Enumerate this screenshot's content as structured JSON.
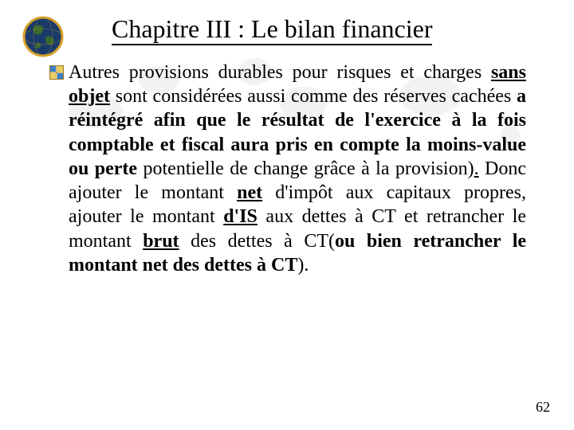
{
  "title": "Chapitre III : Le bilan financier",
  "page_number": "62",
  "body": {
    "spans": [
      {
        "text": "Autres provisions durables pour risques et charges ",
        "style": ""
      },
      {
        "text": "sans objet",
        "style": "bu"
      },
      {
        "text": " sont considérées aussi comme des réserves cachées ",
        "style": ""
      },
      {
        "text": "a réintégré afin que le résultat de l'exercice à la fois comptable et fiscal aura pris en compte la moins-value ou perte",
        "style": "b"
      },
      {
        "text": " potentielle de change grâce à la provision)",
        "style": ""
      },
      {
        "text": ".",
        "style": "u"
      },
      {
        "text": " Donc ajouter le montant ",
        "style": ""
      },
      {
        "text": "net",
        "style": "bu"
      },
      {
        "text": " d'impôt aux capitaux propres, ajouter le montant ",
        "style": ""
      },
      {
        "text": "d'IS",
        "style": "bu"
      },
      {
        "text": " aux dettes à CT et retrancher le montant ",
        "style": ""
      },
      {
        "text": "brut",
        "style": "bu"
      },
      {
        "text": " des dettes à CT(",
        "style": ""
      },
      {
        "text": "ou bien retrancher le montant net des dettes à CT",
        "style": "b"
      },
      {
        "text": ").",
        "style": ""
      }
    ]
  },
  "colors": {
    "globe_border": "#d4a02a",
    "globe_ocean": "#1a3a6a",
    "globe_land": "#3a6a2a",
    "bullet_border": "#a07818",
    "bullet_tl": "#3a80c8",
    "bullet_tr": "#e8d060",
    "bullet_bl": "#e8d060",
    "bullet_br": "#3a80c8"
  }
}
